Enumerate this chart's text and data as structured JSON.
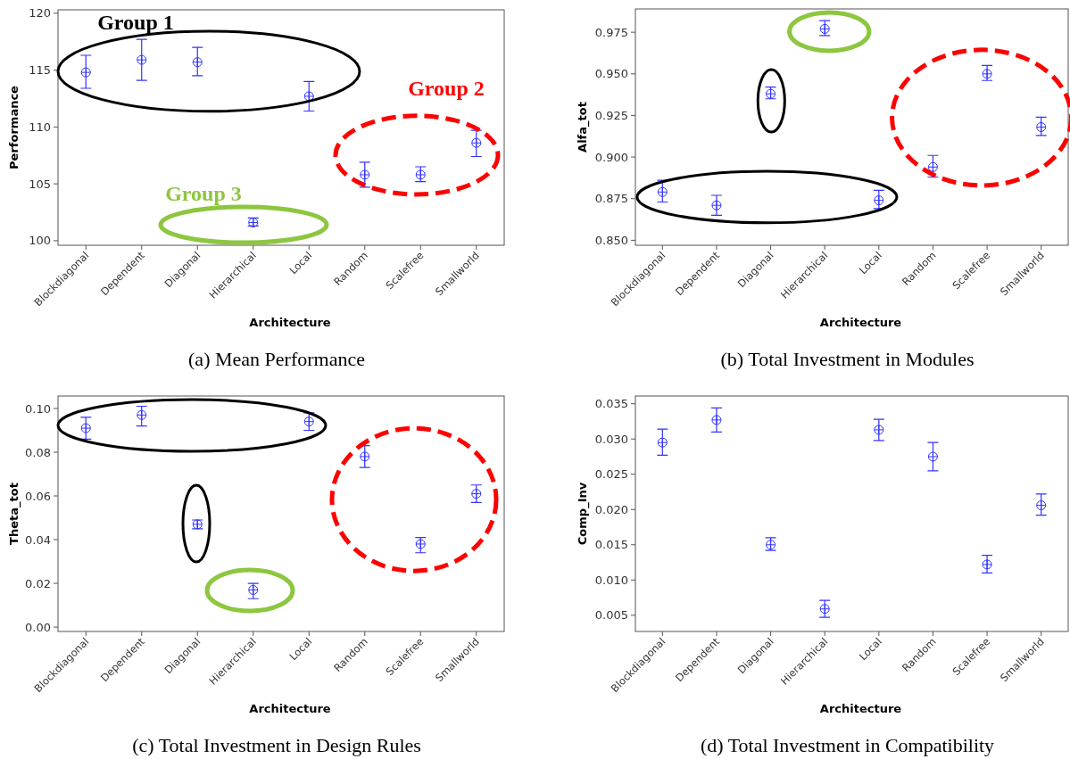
{
  "chart_data": [
    {
      "type": "scatter",
      "title": "(a) Mean Performance",
      "xlabel": "Architecture",
      "ylabel": "Performance",
      "categories": [
        "Blockdiagonal",
        "Dependent",
        "Diagonal",
        "Hierarchical",
        "Local",
        "Random",
        "Scalefree",
        "Smallworld"
      ],
      "series": [
        {
          "color": "#3333ff",
          "values": [
            114.8,
            115.9,
            115.7,
            101.6,
            112.7,
            105.8,
            105.8,
            108.6
          ],
          "errors": [
            [
              113.4,
              116.3
            ],
            [
              114.1,
              117.7
            ],
            [
              114.5,
              117.0
            ],
            [
              101.3,
              102.0
            ],
            [
              111.4,
              114.0
            ],
            [
              104.7,
              106.9
            ],
            [
              105.2,
              106.5
            ],
            [
              107.4,
              109.7
            ]
          ]
        }
      ],
      "ylim": [
        99.6,
        120.3
      ],
      "yticks": [
        100,
        105,
        110,
        115,
        120
      ],
      "marker": "circle",
      "annotations": [
        "Group 1",
        "Group 2",
        "Group 3"
      ]
    },
    {
      "type": "scatter",
      "title": "(b) Total Investment in Modules",
      "xlabel": "Architecture",
      "ylabel": "Alfa_tot",
      "categories": [
        "Blockdiagonal",
        "Dependent",
        "Diagonal",
        "Hierarchical",
        "Local",
        "Random",
        "Scalefree",
        "Smallworld"
      ],
      "series": [
        {
          "color": "#3333ff",
          "values": [
            0.879,
            0.871,
            0.938,
            0.977,
            0.874,
            0.894,
            0.95,
            0.918
          ],
          "errors": [
            [
              0.873,
              0.886
            ],
            [
              0.865,
              0.877
            ],
            [
              0.935,
              0.942
            ],
            [
              0.973,
              0.982
            ],
            [
              0.869,
              0.88
            ],
            [
              0.888,
              0.901
            ],
            [
              0.946,
              0.955
            ],
            [
              0.913,
              0.924
            ]
          ]
        }
      ],
      "ylim": [
        0.847,
        0.989
      ],
      "yticks": [
        {
          "value": 0.85,
          "label": "0.850"
        },
        {
          "value": 0.875,
          "label": "0.875"
        },
        {
          "value": 0.9,
          "label": "0.900"
        },
        {
          "value": 0.925,
          "label": "0.925"
        },
        {
          "value": 0.95,
          "label": "0.950"
        },
        {
          "value": 0.975,
          "label": "0.975"
        }
      ],
      "marker": "circle"
    },
    {
      "type": "scatter",
      "title": "(c) Total Investment in Design Rules",
      "xlabel": "Architecture",
      "ylabel": "Theta_tot",
      "categories": [
        "Blockdiagonal",
        "Dependent",
        "Diagonal",
        "Hierarchical",
        "Local",
        "Random",
        "Scalefree",
        "Smallworld"
      ],
      "series": [
        {
          "color": "#3333ff",
          "values": [
            0.091,
            0.097,
            0.047,
            0.017,
            0.094,
            0.078,
            0.038,
            0.061
          ],
          "errors": [
            [
              0.086,
              0.096
            ],
            [
              0.092,
              0.101
            ],
            [
              0.045,
              0.049
            ],
            [
              0.013,
              0.02
            ],
            [
              0.09,
              0.098
            ],
            [
              0.073,
              0.083
            ],
            [
              0.034,
              0.041
            ],
            [
              0.057,
              0.065
            ]
          ]
        }
      ],
      "ylim": [
        -0.002,
        0.1057
      ],
      "yticks": [
        {
          "value": 0,
          "label": "0.00"
        },
        {
          "value": 0.02,
          "label": "0.02"
        },
        {
          "value": 0.04,
          "label": "0.04"
        },
        {
          "value": 0.06,
          "label": "0.06"
        },
        {
          "value": 0.08,
          "label": "0.08"
        },
        {
          "value": 0.1,
          "label": "0.10"
        }
      ],
      "marker": "circle"
    },
    {
      "type": "scatter",
      "title": "(d) Total Investment in Compatibility",
      "xlabel": "Architecture",
      "ylabel": "Comp_Inv",
      "categories": [
        "Blockdiagonal",
        "Dependent",
        "Diagonal",
        "Hierarchical",
        "Local",
        "Random",
        "Scalefree",
        "Smallworld"
      ],
      "series": [
        {
          "color": "#3333ff",
          "values": [
            0.0295,
            0.0327,
            0.015,
            0.0059,
            0.0313,
            0.0275,
            0.0122,
            0.0206
          ],
          "errors": [
            [
              0.0277,
              0.0314
            ],
            [
              0.031,
              0.0344
            ],
            [
              0.0142,
              0.016
            ],
            [
              0.0047,
              0.0071
            ],
            [
              0.0298,
              0.0328
            ],
            [
              0.0255,
              0.0295
            ],
            [
              0.011,
              0.0135
            ],
            [
              0.0192,
              0.0222
            ]
          ]
        }
      ],
      "ylim": [
        0.0027,
        0.0361
      ],
      "yticks": [
        {
          "value": 0.005,
          "label": "0.005"
        },
        {
          "value": 0.01,
          "label": "0.010"
        },
        {
          "value": 0.015,
          "label": "0.015"
        },
        {
          "value": 0.02,
          "label": "0.020"
        },
        {
          "value": 0.025,
          "label": "0.025"
        },
        {
          "value": 0.03,
          "label": "0.030"
        },
        {
          "value": 0.035,
          "label": "0.035"
        }
      ],
      "marker": "circle"
    }
  ]
}
